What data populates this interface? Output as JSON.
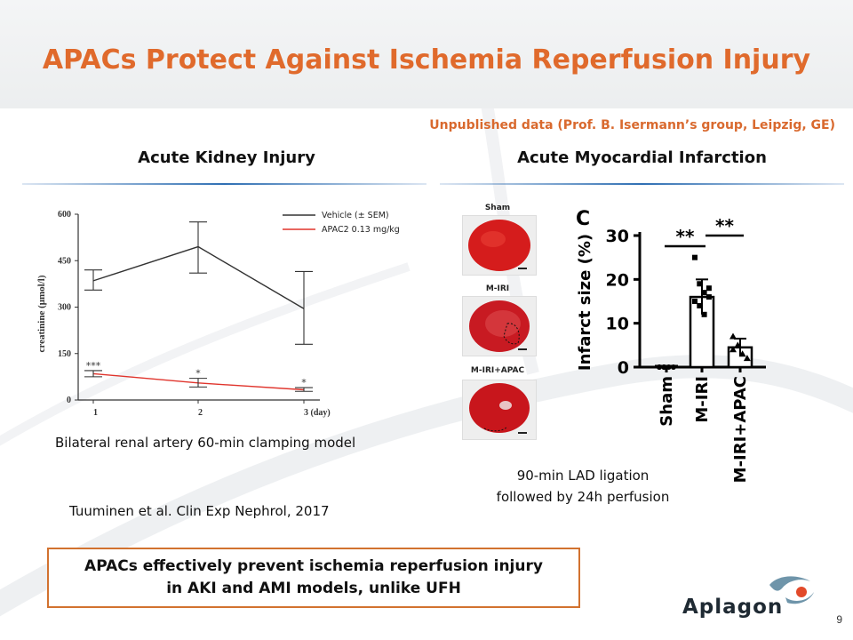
{
  "slide": {
    "title": "APACs Protect Against Ischemia Reperfusion Injury",
    "source_note": "Unpublished data (Prof. B. Isermann’s group, Leipzig, GE)",
    "page_number": "9",
    "accent_color": "#e06a2c",
    "line_color": "#2f6fb3"
  },
  "left": {
    "heading": "Acute Kidney Injury",
    "model_caption": "Bilateral renal artery 60-min clamping model",
    "citation": "Tuuminen et al. Clin Exp Nephrol, 2017"
  },
  "right": {
    "heading": "Acute Myocardial Infarction",
    "caption_line1": "90-min LAD ligation",
    "caption_line2": "followed by 24h perfusion",
    "hearts": [
      {
        "label": "Sham"
      },
      {
        "label": "M-IRI"
      },
      {
        "label": "M-IRI+APAC"
      }
    ]
  },
  "conclusion": {
    "line1": "APACs effectively prevent ischemia reperfusion injury",
    "line2": "in AKI and AMI models, unlike UFH"
  },
  "logo": {
    "text": "Aplagon",
    "icon": "aplagon-logo-icon"
  },
  "chart_data": [
    {
      "type": "line",
      "ylabel": "creatinine (μmol/l)",
      "xlabel": "",
      "x": [
        "1",
        "2",
        "3 (day)"
      ],
      "yticks": [
        "0",
        "150",
        "300",
        "450",
        "600"
      ],
      "ylim": [
        0,
        600
      ],
      "legend_position": "top-right",
      "series": [
        {
          "name": "Vehicle (± SEM)",
          "color": "#333333",
          "values": [
            385,
            495,
            295
          ],
          "err_low": [
            355,
            410,
            180
          ],
          "err_high": [
            420,
            575,
            415
          ],
          "markers": [
            "",
            "",
            ""
          ]
        },
        {
          "name": "APAC2 0.13 mg/kg",
          "color": "#e0342c",
          "values": [
            85,
            55,
            33
          ],
          "err_low": [
            75,
            42,
            28
          ],
          "err_high": [
            95,
            70,
            40
          ],
          "markers": [
            "***",
            "*",
            "*"
          ]
        }
      ]
    },
    {
      "type": "bar",
      "panel_label": "C",
      "ylabel": "Infarct size (%)",
      "categories": [
        "Sham",
        "M-IRI",
        "M-IRI+APAC"
      ],
      "values": [
        0,
        16,
        4.5
      ],
      "err": [
        0.3,
        4,
        2
      ],
      "ylim": [
        0,
        30
      ],
      "yticks": [
        "0",
        "10",
        "20",
        "30"
      ],
      "points": [
        [
          0,
          0,
          0,
          0,
          0,
          0
        ],
        [
          25,
          19,
          17,
          16,
          15,
          14,
          12,
          18
        ],
        [
          7,
          5,
          3,
          2,
          4
        ]
      ],
      "significance": [
        "**",
        "**"
      ]
    }
  ]
}
